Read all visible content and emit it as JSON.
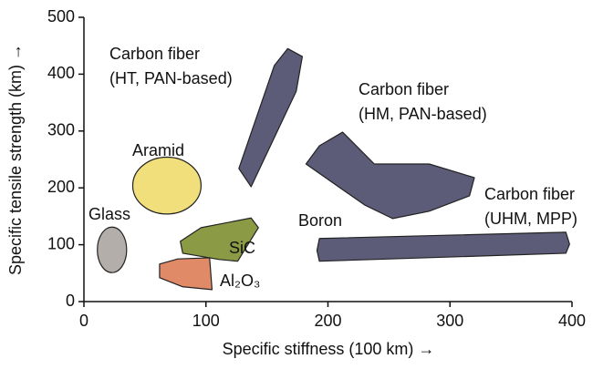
{
  "chart_data": {
    "type": "region",
    "xlabel": "Specific stiffness (100 km) →",
    "ylabel": "Specific tensile strength (km) →",
    "xlim": [
      0,
      400
    ],
    "ylim": [
      0,
      500
    ],
    "xticks": [
      0,
      100,
      200,
      300,
      400
    ],
    "yticks": [
      0,
      100,
      200,
      300,
      400,
      500
    ],
    "series": [
      {
        "name": [
          "Glass"
        ],
        "shape": "ellipse",
        "color": "#b3aea9",
        "x": [
          23
        ],
        "y": [
          91
        ],
        "rx": 12,
        "ry": 40
      },
      {
        "name": [
          "Aramid"
        ],
        "shape": "ellipse",
        "color": "#f1df7c",
        "x": [
          68
        ],
        "y": [
          204
        ],
        "rx": 28,
        "ry": 50
      },
      {
        "name": [
          "Carbon fiber",
          "(HT, PAN-based)"
        ],
        "shape": "polygon",
        "color": "#5c5b78",
        "x": [
          127,
          156,
          167,
          179,
          174,
          137
        ],
        "y": [
          234,
          415,
          445,
          431,
          370,
          202
        ]
      },
      {
        "name": [
          "Carbon fiber",
          "(HM, PAN-based)"
        ],
        "shape": "polygon",
        "color": "#5c5b78",
        "x": [
          182,
          193,
          212,
          238,
          283,
          320,
          316,
          283,
          253,
          230
        ],
        "y": [
          242,
          274,
          298,
          242,
          242,
          218,
          186,
          159,
          146,
          170
        ]
      },
      {
        "name": [
          "Carbon fiber",
          "(UHM, MPP)"
        ],
        "shape": "polygon",
        "color": "#5c5b78",
        "x": [
          193,
          395,
          398,
          395,
          193,
          191
        ],
        "y": [
          111,
          122,
          101,
          85,
          71,
          90
        ]
      },
      {
        "name": [
          "Boron"
        ],
        "shape": "label"
      },
      {
        "name": [
          "SiC"
        ],
        "shape": "polygon",
        "color": "#8a9a45",
        "x": [
          79,
          96,
          137,
          143,
          126,
          111,
          81
        ],
        "y": [
          106,
          130,
          147,
          130,
          71,
          74,
          85
        ]
      },
      {
        "name": [
          "Al₂O₃"
        ],
        "shape": "polygon",
        "color": "#e08a68",
        "x": [
          62,
          77,
          103,
          105,
          81,
          62
        ],
        "y": [
          66,
          75,
          77,
          21,
          26,
          42
        ]
      }
    ]
  }
}
